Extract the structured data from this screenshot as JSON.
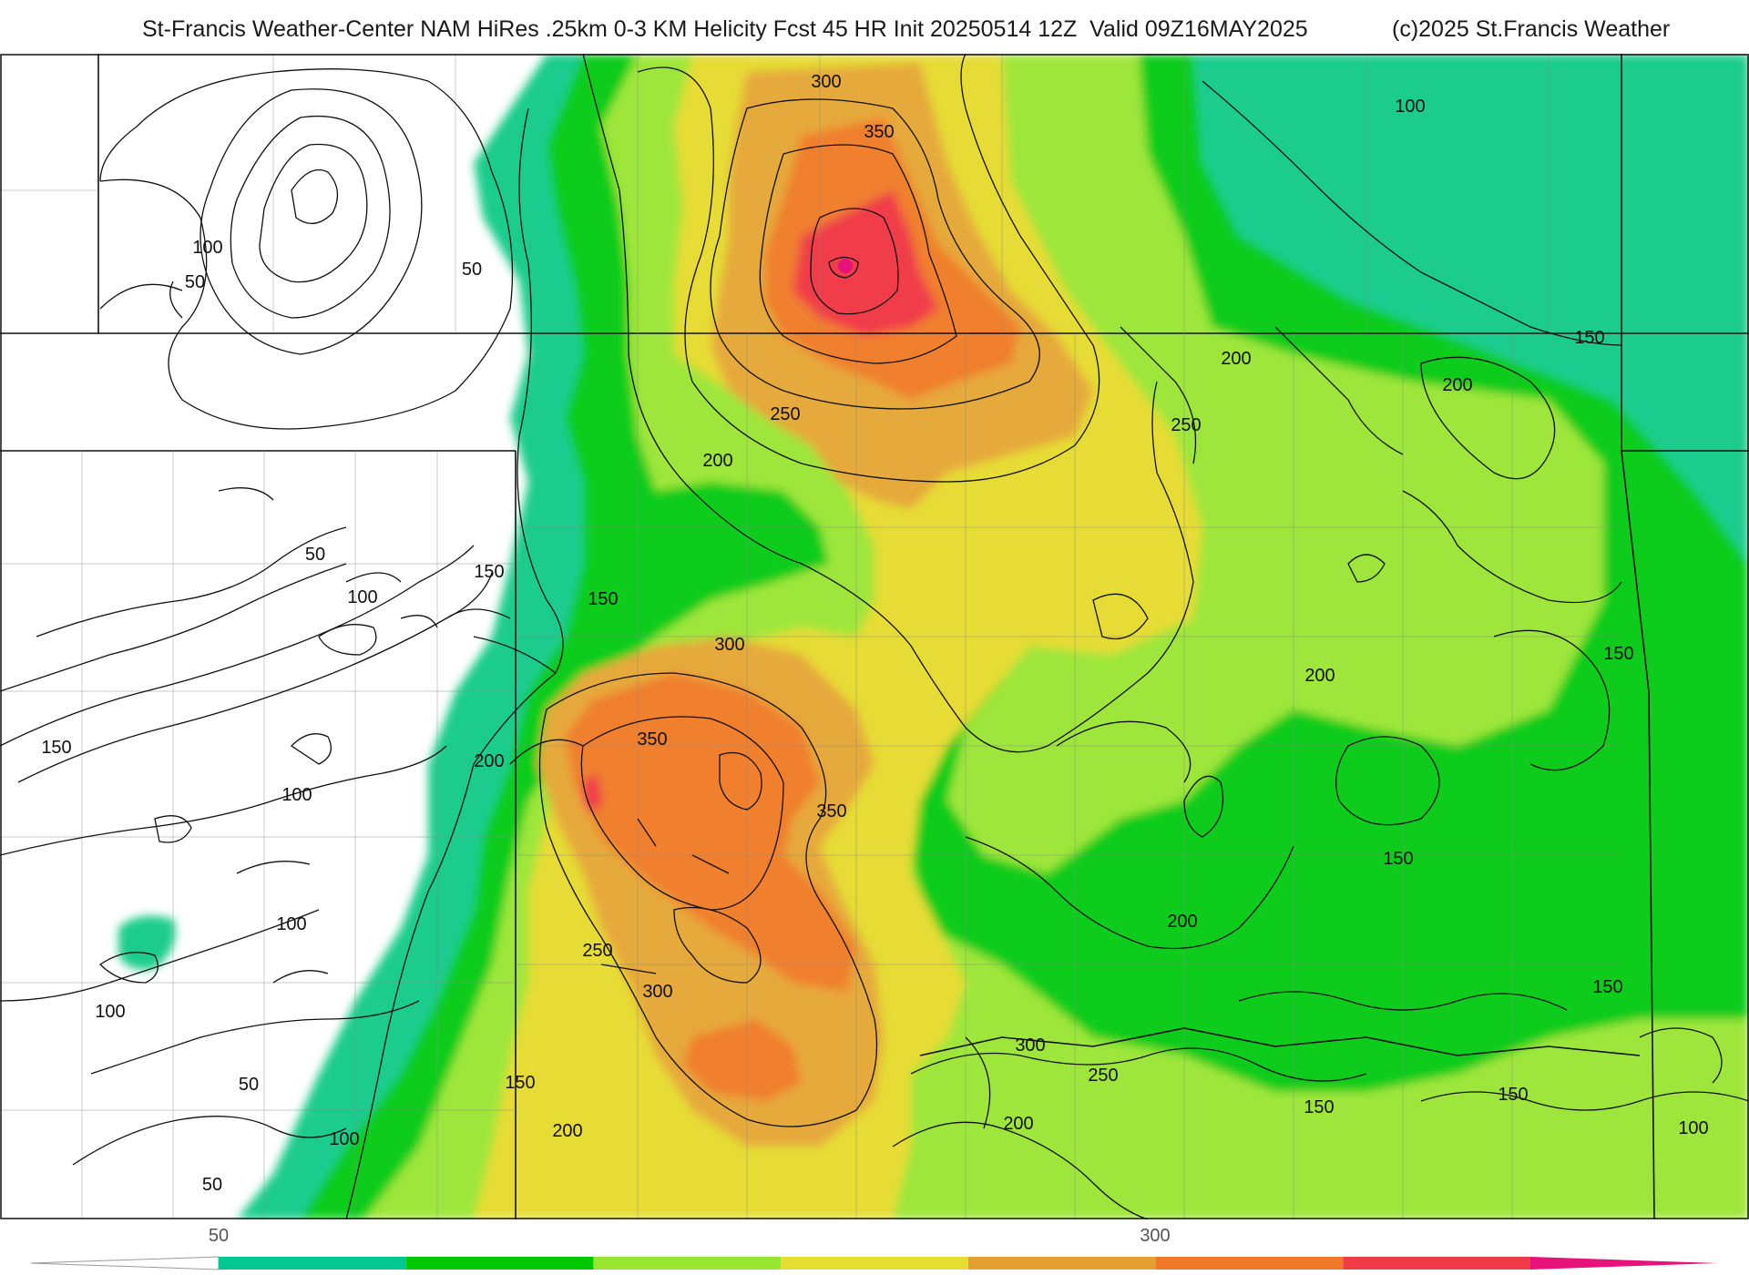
{
  "header": {
    "title": "St-Francis Weather-Center NAM HiRes .25km 0-3 KM Helicity Fcst 45 HR Init 20250514 12Z  Valid 09Z16MAY2025",
    "copyright": "(c)2025 St.Francis Weather"
  },
  "map": {
    "variable": "0-3 KM Helicity",
    "contour_labels": [
      {
        "text": "300"
      },
      {
        "text": "350"
      },
      {
        "text": "100"
      },
      {
        "text": "50"
      },
      {
        "text": "100"
      },
      {
        "text": "50"
      },
      {
        "text": "200"
      },
      {
        "text": "150"
      },
      {
        "text": "200"
      },
      {
        "text": "250"
      },
      {
        "text": "250"
      },
      {
        "text": "200"
      },
      {
        "text": "50"
      },
      {
        "text": "150"
      },
      {
        "text": "100"
      },
      {
        "text": "150"
      },
      {
        "text": "300"
      },
      {
        "text": "350"
      },
      {
        "text": "350"
      },
      {
        "text": "200"
      },
      {
        "text": "150"
      },
      {
        "text": "100"
      },
      {
        "text": "200"
      },
      {
        "text": "150"
      },
      {
        "text": "100"
      },
      {
        "text": "150"
      },
      {
        "text": "200"
      },
      {
        "text": "250"
      },
      {
        "text": "300"
      },
      {
        "text": "100"
      },
      {
        "text": "150"
      },
      {
        "text": "300"
      },
      {
        "text": "250"
      },
      {
        "text": "150"
      },
      {
        "text": "50"
      },
      {
        "text": "200"
      },
      {
        "text": "200"
      },
      {
        "text": "150"
      },
      {
        "text": "100"
      },
      {
        "text": "50"
      },
      {
        "text": "100"
      },
      {
        "text": "150"
      }
    ]
  },
  "legend": {
    "tick_labels": [
      "50",
      "300"
    ],
    "colors": [
      "#00c890",
      "#00c800",
      "#96e632",
      "#e6dc32",
      "#e6a032",
      "#f07828",
      "#f03c46",
      "#e6147a"
    ]
  }
}
